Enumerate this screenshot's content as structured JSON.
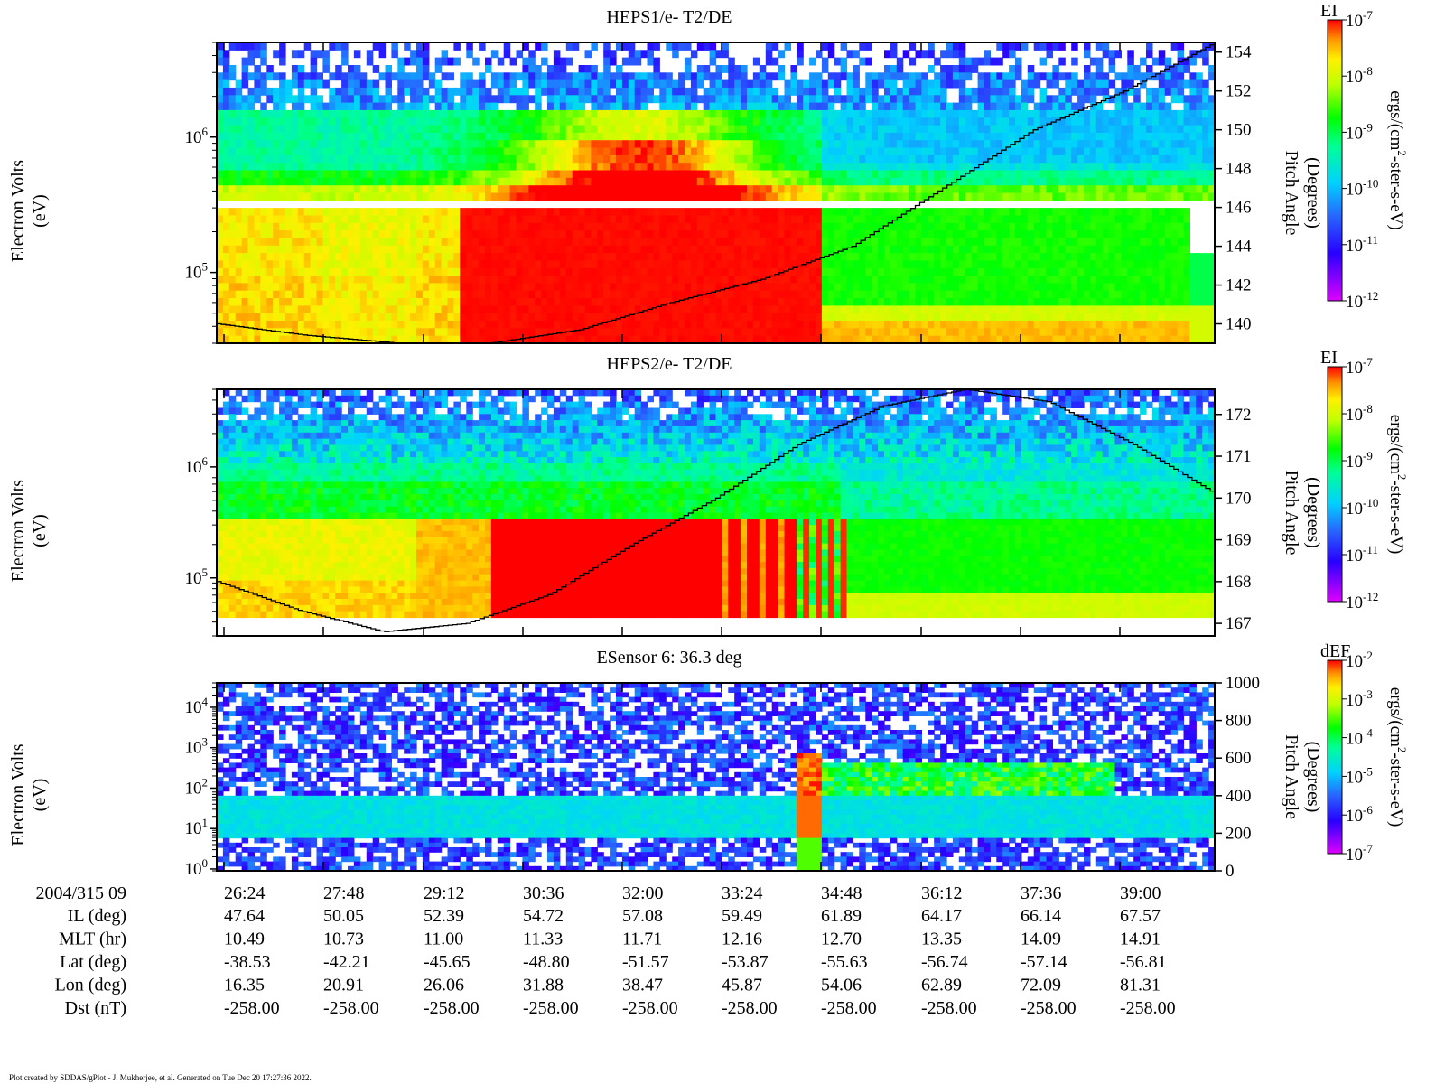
{
  "footer_text": "Plot created by SDDAS/gPlot - J. Mukherjee, et al.  Generated on Tue Dec 20 17:27:36 2022.",
  "chart_data": [
    {
      "type": "heatmap",
      "title": "HEPS1/e- T2/DE",
      "ylabel": [
        "Electron Volts",
        "(eV)"
      ],
      "y2label": [
        "Pitch Angle",
        "(Degrees)"
      ],
      "yscale": "log",
      "ylim": [
        30000,
        5000000
      ],
      "y_ticks": [
        {
          "base": "10",
          "exp": "6",
          "value": 1000000
        },
        {
          "base": "10",
          "exp": "5",
          "value": 100000
        }
      ],
      "y2lim": [
        139,
        154.5
      ],
      "y2_ticks": [
        "154",
        "152",
        "150",
        "148",
        "146",
        "144",
        "142",
        "140"
      ],
      "colorbar": {
        "label": "EI",
        "units": "ergs/(cm²-ster-s-eV)",
        "units_parts": [
          "ergs/(cm",
          "2",
          "-ster-s-eV)"
        ],
        "scale": "log",
        "ticks": [
          {
            "base": "10",
            "exp": "-7"
          },
          {
            "base": "10",
            "exp": "-8"
          },
          {
            "base": "10",
            "exp": "-9"
          },
          {
            "base": "10",
            "exp": "-10"
          },
          {
            "base": "10",
            "exp": "-11"
          },
          {
            "base": "10",
            "exp": "-12"
          }
        ]
      },
      "pitch_angle_series": [
        140.0,
        139.4,
        139.0,
        139.0,
        139.7,
        141.1,
        142.3,
        144.0,
        147.0,
        150.0,
        152.0,
        154.5
      ]
    },
    {
      "type": "heatmap",
      "title": "HEPS2/e- T2/DE",
      "ylabel": [
        "Electron Volts",
        "(eV)"
      ],
      "y2label": [
        "Pitch Angle",
        "(Degrees)"
      ],
      "yscale": "log",
      "ylim": [
        30000,
        5000000
      ],
      "y_ticks": [
        {
          "base": "10",
          "exp": "6",
          "value": 1000000
        },
        {
          "base": "10",
          "exp": "5",
          "value": 100000
        }
      ],
      "y2lim": [
        166.7,
        172.6
      ],
      "y2_ticks": [
        "172",
        "171",
        "170",
        "169",
        "168",
        "167"
      ],
      "colorbar": {
        "label": "EI",
        "units": "ergs/(cm²-ster-s-eV)",
        "units_parts": [
          "ergs/(cm",
          "2",
          "-ster-s-eV)"
        ],
        "scale": "log",
        "ticks": [
          {
            "base": "10",
            "exp": "-7"
          },
          {
            "base": "10",
            "exp": "-8"
          },
          {
            "base": "10",
            "exp": "-9"
          },
          {
            "base": "10",
            "exp": "-10"
          },
          {
            "base": "10",
            "exp": "-11"
          },
          {
            "base": "10",
            "exp": "-12"
          }
        ]
      },
      "pitch_angle_series": [
        168.0,
        167.3,
        166.8,
        167.0,
        167.7,
        168.9,
        170.0,
        171.3,
        172.2,
        172.6,
        172.3,
        171.3,
        170.1
      ]
    },
    {
      "type": "heatmap",
      "title": "ESensor 6: 36.3 deg",
      "ylabel": [
        "Electron Volts",
        "(eV)"
      ],
      "y2label": [
        "Pitch Angle",
        "(Degrees)"
      ],
      "yscale": "log",
      "ylim": [
        0.9,
        40000
      ],
      "y_ticks": [
        {
          "base": "10",
          "exp": "4",
          "value": 10000
        },
        {
          "base": "10",
          "exp": "3",
          "value": 1000
        },
        {
          "base": "10",
          "exp": "2",
          "value": 100
        },
        {
          "base": "10",
          "exp": "1",
          "value": 10
        },
        {
          "base": "10",
          "exp": "0",
          "value": 1
        }
      ],
      "y2lim": [
        0,
        1000
      ],
      "y2_ticks": [
        "1000",
        "800",
        "600",
        "400",
        "200",
        "0"
      ],
      "colorbar": {
        "label": "dEF",
        "units": "ergs/(cm²-ster-s-eV)",
        "units_parts": [
          "ergs/(cm",
          "2",
          "-ster-s-eV)"
        ],
        "scale": "log",
        "ticks": [
          {
            "base": "10",
            "exp": "-2"
          },
          {
            "base": "10",
            "exp": "-3"
          },
          {
            "base": "10",
            "exp": "-4"
          },
          {
            "base": "10",
            "exp": "-5"
          },
          {
            "base": "10",
            "exp": "-6"
          },
          {
            "base": "10",
            "exp": "-7"
          }
        ]
      }
    }
  ],
  "x_axis": {
    "date_label": "2004/315 09",
    "times": [
      "26:24",
      "27:48",
      "29:12",
      "30:36",
      "32:00",
      "33:24",
      "34:48",
      "36:12",
      "37:36",
      "39:00"
    ],
    "rows": [
      {
        "label": "IL (deg)",
        "values": [
          "47.64",
          "50.05",
          "52.39",
          "54.72",
          "57.08",
          "59.49",
          "61.89",
          "64.17",
          "66.14",
          "67.57"
        ]
      },
      {
        "label": "MLT (hr)",
        "values": [
          "10.49",
          "10.73",
          "11.00",
          "11.33",
          "11.71",
          "12.16",
          "12.70",
          "13.35",
          "14.09",
          "14.91"
        ]
      },
      {
        "label": "Lat (deg)",
        "values": [
          "-38.53",
          "-42.21",
          "-45.65",
          "-48.80",
          "-51.57",
          "-53.87",
          "-55.63",
          "-56.74",
          "-57.14",
          "-56.81"
        ]
      },
      {
        "label": "Lon (deg)",
        "values": [
          "16.35",
          "20.91",
          "26.06",
          "31.88",
          "38.47",
          "45.87",
          "54.06",
          "62.89",
          "72.09",
          "81.31"
        ]
      },
      {
        "label": "Dst (nT)",
        "values": [
          "-258.00",
          "-258.00",
          "-258.00",
          "-258.00",
          "-258.00",
          "-258.00",
          "-258.00",
          "-258.00",
          "-258.00",
          "-258.00"
        ]
      }
    ]
  }
}
